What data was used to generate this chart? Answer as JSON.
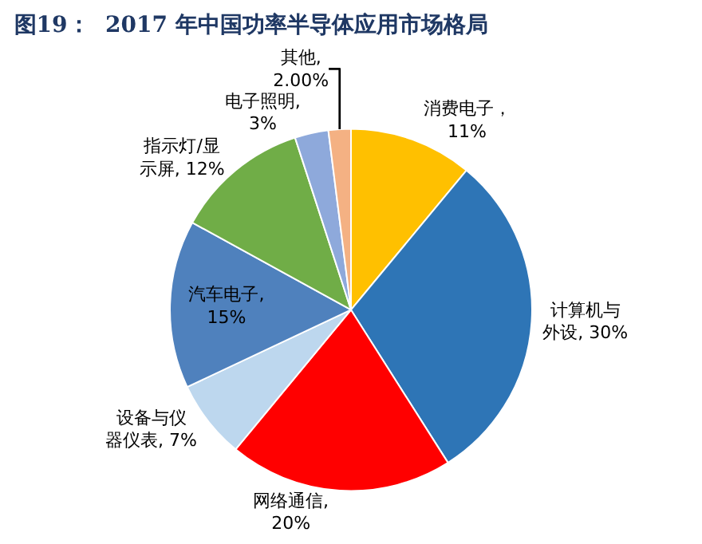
{
  "chart_data": {
    "type": "pie",
    "title": "图19：  2017 年中国功率半导体应用市场格局",
    "categories": [
      "消费电子",
      "计算机与外设",
      "网络通信",
      "设备与仪器仪表",
      "汽车电子",
      "指示灯/显示屏",
      "电子照明",
      "其他"
    ],
    "values": [
      11,
      30,
      20,
      7,
      15,
      12,
      3,
      2
    ],
    "colors": [
      "#ffc000",
      "#2e75b6",
      "#ff0000",
      "#bdd7ee",
      "#4f81bd",
      "#70ad47",
      "#8ea9db",
      "#f4b183"
    ],
    "value_labels": [
      "，11%",
      ", 30%",
      ", 20%",
      ", 7%",
      ", 15%",
      ", 12%",
      ", 3%",
      ", 2.00%"
    ],
    "legend": false
  }
}
